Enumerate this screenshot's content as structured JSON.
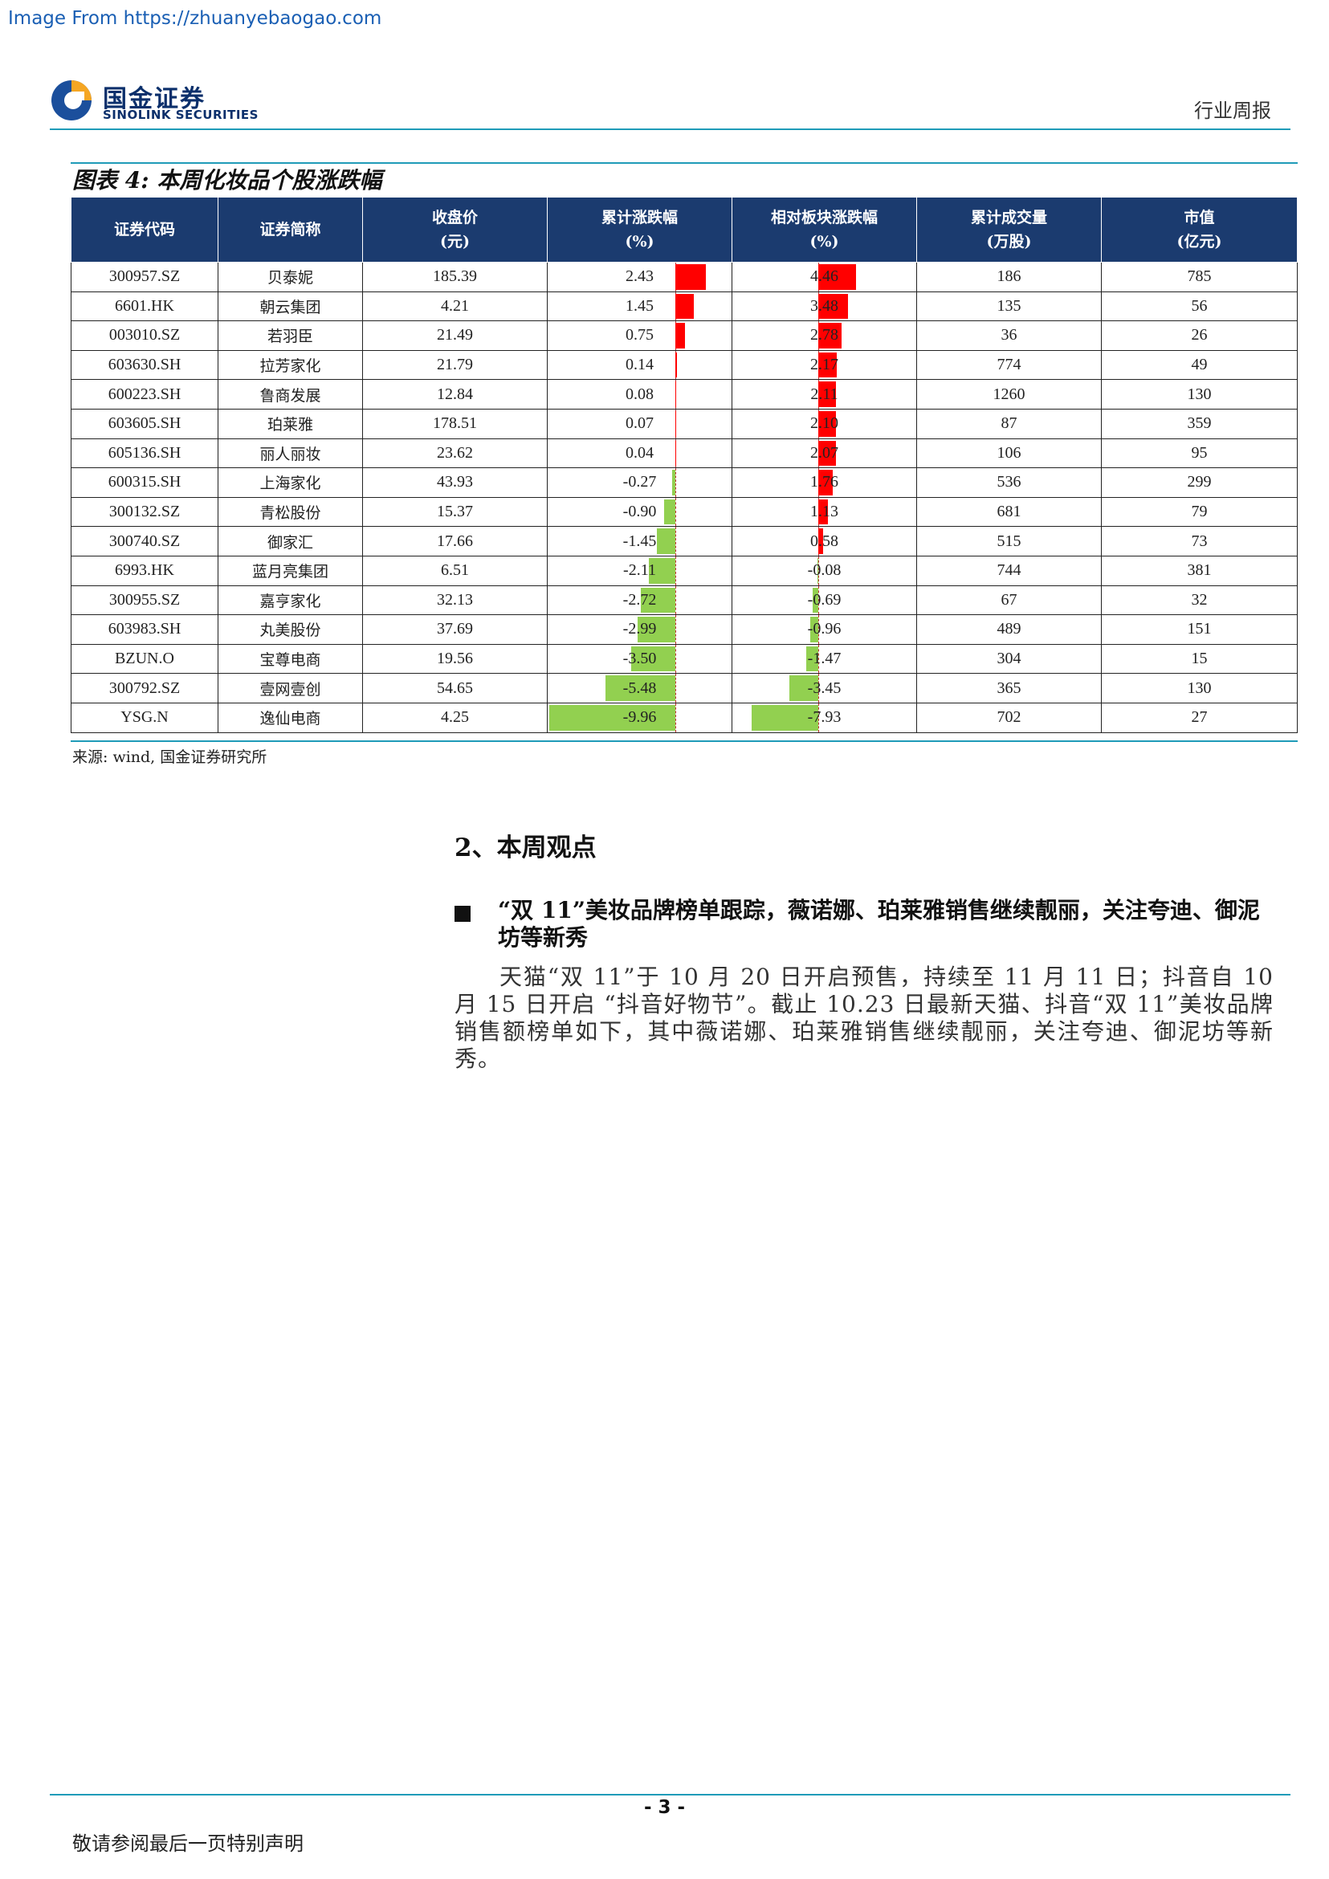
{
  "watermark": "Image From https://zhuanyebaogao.com",
  "header": {
    "logo_cn": "国金证券",
    "logo_en": "SINOLINK SECURITIES",
    "report_type": "行业周报"
  },
  "figure": {
    "title": "图表 4:  本周化妆品个股涨跌幅",
    "columns": [
      {
        "line1": "证券代码",
        "line2": ""
      },
      {
        "line1": "证券简称",
        "line2": ""
      },
      {
        "line1": "收盘价",
        "line2": "(元)"
      },
      {
        "line1": "累计涨跌幅",
        "line2": "(%)"
      },
      {
        "line1": "相对板块涨跌幅",
        "line2": "(%)"
      },
      {
        "line1": "累计成交量",
        "line2": "(万股)"
      },
      {
        "line1": "市值",
        "line2": "(亿元)"
      }
    ],
    "rows": [
      {
        "code": "300957.SZ",
        "name": "贝泰妮",
        "close": "185.39",
        "cum": 2.43,
        "rel": 4.46,
        "vol": "186",
        "cap": "785"
      },
      {
        "code": "6601.HK",
        "name": "朝云集团",
        "close": "4.21",
        "cum": 1.45,
        "rel": 3.48,
        "vol": "135",
        "cap": "56"
      },
      {
        "code": "003010.SZ",
        "name": "若羽臣",
        "close": "21.49",
        "cum": 0.75,
        "rel": 2.78,
        "vol": "36",
        "cap": "26"
      },
      {
        "code": "603630.SH",
        "name": "拉芳家化",
        "close": "21.79",
        "cum": 0.14,
        "rel": 2.17,
        "vol": "774",
        "cap": "49"
      },
      {
        "code": "600223.SH",
        "name": "鲁商发展",
        "close": "12.84",
        "cum": 0.08,
        "rel": 2.11,
        "vol": "1260",
        "cap": "130"
      },
      {
        "code": "603605.SH",
        "name": "珀莱雅",
        "close": "178.51",
        "cum": 0.07,
        "rel": 2.1,
        "vol": "87",
        "cap": "359"
      },
      {
        "code": "605136.SH",
        "name": "丽人丽妆",
        "close": "23.62",
        "cum": 0.04,
        "rel": 2.07,
        "vol": "106",
        "cap": "95"
      },
      {
        "code": "600315.SH",
        "name": "上海家化",
        "close": "43.93",
        "cum": -0.27,
        "rel": 1.76,
        "vol": "536",
        "cap": "299"
      },
      {
        "code": "300132.SZ",
        "name": "青松股份",
        "close": "15.37",
        "cum": -0.9,
        "rel": 1.13,
        "vol": "681",
        "cap": "79"
      },
      {
        "code": "300740.SZ",
        "name": "御家汇",
        "close": "17.66",
        "cum": -1.45,
        "rel": 0.58,
        "vol": "515",
        "cap": "73"
      },
      {
        "code": "6993.HK",
        "name": "蓝月亮集团",
        "close": "6.51",
        "cum": -2.11,
        "rel": -0.08,
        "vol": "744",
        "cap": "381"
      },
      {
        "code": "300955.SZ",
        "name": "嘉亨家化",
        "close": "32.13",
        "cum": -2.72,
        "rel": -0.69,
        "vol": "67",
        "cap": "32"
      },
      {
        "code": "603983.SH",
        "name": "丸美股份",
        "close": "37.69",
        "cum": -2.99,
        "rel": -0.96,
        "vol": "489",
        "cap": "151"
      },
      {
        "code": "BZUN.O",
        "name": "宝尊电商",
        "close": "19.56",
        "cum": -3.5,
        "rel": -1.47,
        "vol": "304",
        "cap": "15"
      },
      {
        "code": "300792.SZ",
        "name": "壹网壹创",
        "close": "54.65",
        "cum": -5.48,
        "rel": -3.45,
        "vol": "365",
        "cap": "130"
      },
      {
        "code": "YSG.N",
        "name": "逸仙电商",
        "close": "4.25",
        "cum": -9.96,
        "rel": -7.93,
        "vol": "702",
        "cap": "27"
      }
    ],
    "colors": {
      "positive": "#ff0000",
      "negative": "#92d050",
      "header_bg": "#1b3b6f"
    },
    "source": "来源: wind, 国金证券研究所"
  },
  "section": {
    "title": "2、本周观点",
    "bullet_title": "“双 11”美妆品牌榜单跟踪，薇诺娜、珀莱雅销售继续靓丽，关注夸迪、御泥坊等新秀",
    "paragraph": "天猫“双 11”于 10 月 20 日开启预售，持续至 11 月 11 日；抖音自 10 月 15 日开启 “抖音好物节”。截止 10.23 日最新天猫、抖音“双 11”美妆品牌销售额榜单如下，其中薇诺娜、珀莱雅销售继续靓丽，关注夸迪、御泥坊等新秀。"
  },
  "footer": {
    "page": "- 3 -",
    "disclaimer": "敬请参阅最后一页特别声明"
  }
}
